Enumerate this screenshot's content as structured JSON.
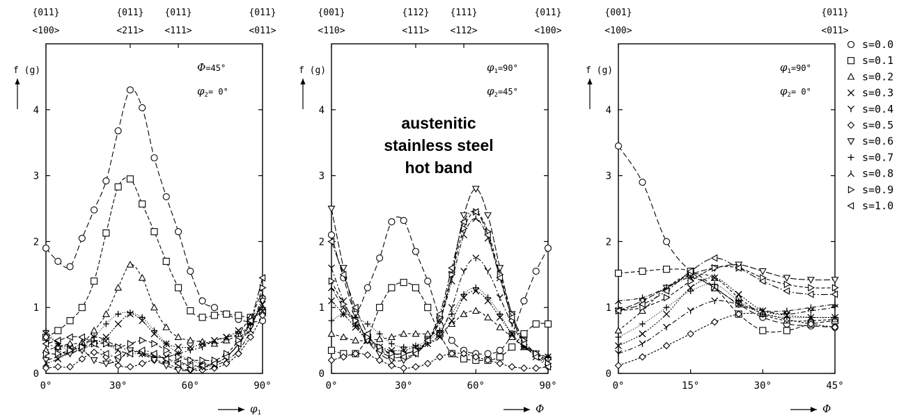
{
  "figure": {
    "annotation": [
      "austenitic",
      "stainless steel",
      "hot band"
    ],
    "legend": {
      "placement": "right",
      "entries": [
        {
          "marker": "circle",
          "label": "s=0.0"
        },
        {
          "marker": "square",
          "label": "s=0.1"
        },
        {
          "marker": "triangle-up",
          "label": "s=0.2"
        },
        {
          "marker": "x",
          "label": "s=0.3"
        },
        {
          "marker": "y-tri",
          "label": "s=0.4"
        },
        {
          "marker": "diamond",
          "label": "s=0.5"
        },
        {
          "marker": "triangle-down",
          "label": "s=0.6"
        },
        {
          "marker": "plus",
          "label": "s=0.7"
        },
        {
          "marker": "lambda-tri",
          "label": "s=0.8"
        },
        {
          "marker": "triangle-right",
          "label": "s=0.9"
        },
        {
          "marker": "triangle-left",
          "label": "s=1.0"
        }
      ]
    }
  },
  "chart_data": [
    {
      "type": "line",
      "ylabel": "f (g)",
      "xlabel_symbol": "φ1",
      "params": [
        {
          "sym": "Φ",
          "val": "=45°"
        },
        {
          "sym": "φ2",
          "val": "=  0°"
        }
      ],
      "xlim": [
        0,
        90
      ],
      "ylim": [
        0,
        5
      ],
      "xticks": [
        {
          "v": 0,
          "label": "0°"
        },
        {
          "v": 30,
          "label": "30°"
        },
        {
          "v": 60,
          "label": "60°"
        },
        {
          "v": 90,
          "label": "90°"
        }
      ],
      "yticks": [
        {
          "v": 0,
          "label": "0"
        },
        {
          "v": 1,
          "label": "1"
        },
        {
          "v": 2,
          "label": "2"
        },
        {
          "v": 3,
          "label": "3"
        },
        {
          "v": 4,
          "label": "4"
        }
      ],
      "top_labels": [
        {
          "x": 0,
          "plane": "{011}",
          "dir": "<100>"
        },
        {
          "x": 35,
          "plane": "{011}",
          "dir": "<211>"
        },
        {
          "x": 55,
          "plane": "{011}",
          "dir": "<111>"
        },
        {
          "x": 90,
          "plane": "{011}",
          "dir": "<011>"
        }
      ],
      "x": [
        0,
        5,
        10,
        15,
        20,
        25,
        30,
        35,
        40,
        45,
        50,
        55,
        60,
        65,
        70,
        75,
        80,
        85,
        90
      ],
      "series": [
        {
          "name": "s=0.0",
          "values": [
            1.9,
            1.7,
            1.62,
            2.05,
            2.48,
            2.92,
            3.68,
            4.3,
            4.03,
            3.27,
            2.68,
            2.15,
            1.55,
            1.1,
            1.0,
            0.9,
            0.82,
            0.78,
            0.8
          ]
        },
        {
          "name": "s=0.1",
          "values": [
            0.55,
            0.65,
            0.8,
            1.0,
            1.4,
            2.13,
            2.83,
            2.95,
            2.57,
            2.15,
            1.7,
            1.3,
            0.95,
            0.85,
            0.88,
            0.9,
            0.88,
            0.85,
            0.93
          ]
        },
        {
          "name": "s=0.2",
          "values": [
            0.35,
            0.4,
            0.45,
            0.47,
            0.65,
            0.9,
            1.3,
            1.65,
            1.45,
            1.0,
            0.7,
            0.55,
            0.5,
            0.48,
            0.45,
            0.5,
            0.6,
            0.85,
            1.0
          ]
        },
        {
          "name": "s=0.3",
          "values": [
            0.6,
            0.45,
            0.4,
            0.38,
            0.45,
            0.55,
            0.75,
            0.9,
            0.8,
            0.6,
            0.45,
            0.4,
            0.4,
            0.45,
            0.5,
            0.55,
            0.65,
            0.8,
            0.95
          ]
        },
        {
          "name": "s=0.4",
          "values": [
            0.5,
            0.35,
            0.3,
            0.4,
            0.55,
            0.5,
            0.4,
            0.35,
            0.3,
            0.25,
            0.25,
            0.3,
            0.35,
            0.4,
            0.5,
            0.55,
            0.6,
            0.75,
            1.05
          ]
        },
        {
          "name": "s=0.5",
          "values": [
            0.08,
            0.1,
            0.1,
            0.22,
            0.32,
            0.25,
            0.12,
            0.1,
            0.15,
            0.2,
            0.15,
            0.08,
            0.05,
            0.05,
            0.08,
            0.15,
            0.3,
            0.55,
            0.88
          ]
        },
        {
          "name": "s=0.6",
          "values": [
            0.2,
            0.25,
            0.3,
            0.35,
            0.2,
            0.15,
            0.2,
            0.35,
            0.3,
            0.2,
            0.12,
            0.05,
            0.05,
            0.1,
            0.15,
            0.25,
            0.45,
            0.7,
            1.1
          ]
        },
        {
          "name": "s=0.7",
          "values": [
            0.65,
            0.45,
            0.35,
            0.4,
            0.55,
            0.75,
            0.9,
            0.92,
            0.85,
            0.65,
            0.45,
            0.3,
            0.2,
            0.15,
            0.15,
            0.25,
            0.45,
            0.75,
            1.0
          ]
        },
        {
          "name": "s=0.8",
          "values": [
            0.15,
            0.22,
            0.35,
            0.45,
            0.5,
            0.45,
            0.35,
            0.3,
            0.3,
            0.28,
            0.22,
            0.18,
            0.12,
            0.1,
            0.12,
            0.2,
            0.35,
            0.65,
            1.2
          ]
        },
        {
          "name": "s=0.9",
          "values": [
            0.3,
            0.3,
            0.35,
            0.4,
            0.45,
            0.45,
            0.4,
            0.45,
            0.5,
            0.45,
            0.35,
            0.25,
            0.2,
            0.2,
            0.2,
            0.3,
            0.5,
            0.8,
            1.3
          ]
        },
        {
          "name": "s=1.0",
          "values": [
            0.45,
            0.5,
            0.55,
            0.55,
            0.45,
            0.3,
            0.25,
            0.3,
            0.35,
            0.3,
            0.22,
            0.15,
            0.12,
            0.12,
            0.15,
            0.25,
            0.45,
            0.8,
            1.45
          ]
        }
      ]
    },
    {
      "type": "line",
      "ylabel": "f (g)",
      "xlabel_symbol": "Φ",
      "params": [
        {
          "sym": "φ1",
          "val": "=90°"
        },
        {
          "sym": "φ2",
          "val": "=45°"
        }
      ],
      "xlim": [
        0,
        90
      ],
      "ylim": [
        0,
        5
      ],
      "xticks": [
        {
          "v": 0,
          "label": "0°"
        },
        {
          "v": 30,
          "label": "30°"
        },
        {
          "v": 60,
          "label": "60°"
        },
        {
          "v": 90,
          "label": "90°"
        }
      ],
      "yticks": [
        {
          "v": 0,
          "label": "0"
        },
        {
          "v": 1,
          "label": "1"
        },
        {
          "v": 2,
          "label": "2"
        },
        {
          "v": 3,
          "label": "3"
        },
        {
          "v": 4,
          "label": "4"
        }
      ],
      "top_labels": [
        {
          "x": 0,
          "plane": "{001}",
          "dir": "<110>"
        },
        {
          "x": 35,
          "plane": "{112}",
          "dir": "<111>"
        },
        {
          "x": 55,
          "plane": "{111}",
          "dir": "<112>"
        },
        {
          "x": 90,
          "plane": "{011}",
          "dir": "<100>"
        }
      ],
      "x": [
        0,
        5,
        10,
        15,
        20,
        25,
        30,
        35,
        40,
        45,
        50,
        55,
        60,
        65,
        70,
        75,
        80,
        85,
        90
      ],
      "series": [
        {
          "name": "s=0.0",
          "values": [
            2.1,
            1.45,
            0.95,
            1.3,
            1.75,
            2.3,
            2.32,
            1.85,
            1.4,
            0.85,
            0.5,
            0.35,
            0.3,
            0.3,
            0.35,
            0.6,
            1.1,
            1.55,
            1.9
          ]
        },
        {
          "name": "s=0.1",
          "values": [
            0.35,
            0.3,
            0.3,
            0.55,
            1.0,
            1.3,
            1.38,
            1.3,
            1.0,
            0.6,
            0.3,
            0.22,
            0.2,
            0.2,
            0.25,
            0.4,
            0.6,
            0.75,
            0.75
          ]
        },
        {
          "name": "s=0.2",
          "values": [
            0.6,
            0.55,
            0.5,
            0.5,
            0.52,
            0.55,
            0.6,
            0.6,
            0.6,
            0.62,
            0.75,
            0.9,
            0.95,
            0.85,
            0.7,
            0.55,
            0.4,
            0.3,
            0.25
          ]
        },
        {
          "name": "s=0.3",
          "values": [
            1.1,
            0.9,
            0.7,
            0.5,
            0.4,
            0.35,
            0.35,
            0.4,
            0.45,
            0.55,
            0.8,
            1.15,
            1.25,
            1.1,
            0.85,
            0.6,
            0.4,
            0.3,
            0.25
          ]
        },
        {
          "name": "s=0.4",
          "values": [
            1.6,
            1.1,
            0.75,
            0.5,
            0.35,
            0.3,
            0.3,
            0.35,
            0.45,
            0.6,
            1.0,
            1.55,
            1.75,
            1.55,
            1.15,
            0.75,
            0.45,
            0.3,
            0.2
          ]
        },
        {
          "name": "s=0.5",
          "values": [
            0.2,
            0.25,
            0.3,
            0.28,
            0.2,
            0.12,
            0.08,
            0.1,
            0.15,
            0.25,
            0.3,
            0.3,
            0.25,
            0.2,
            0.15,
            0.1,
            0.08,
            0.08,
            0.1
          ]
        },
        {
          "name": "s=0.6",
          "values": [
            2.5,
            1.6,
            0.9,
            0.5,
            0.3,
            0.2,
            0.2,
            0.3,
            0.5,
            0.8,
            1.5,
            2.4,
            2.8,
            2.4,
            1.6,
            0.9,
            0.5,
            0.3,
            0.2
          ]
        },
        {
          "name": "s=0.7",
          "values": [
            0.8,
            0.9,
            0.85,
            0.75,
            0.6,
            0.45,
            0.4,
            0.42,
            0.5,
            0.65,
            0.9,
            1.2,
            1.3,
            1.15,
            0.9,
            0.6,
            0.4,
            0.3,
            0.25
          ]
        },
        {
          "name": "s=0.8",
          "values": [
            1.3,
            1.0,
            0.75,
            0.55,
            0.4,
            0.3,
            0.3,
            0.35,
            0.5,
            0.8,
            1.4,
            2.1,
            2.35,
            2.05,
            1.45,
            0.85,
            0.45,
            0.25,
            0.15
          ]
        },
        {
          "name": "s=0.9",
          "values": [
            1.4,
            1.05,
            0.8,
            0.55,
            0.4,
            0.3,
            0.3,
            0.35,
            0.5,
            0.85,
            1.5,
            2.2,
            2.45,
            2.15,
            1.5,
            0.9,
            0.5,
            0.3,
            0.15
          ]
        },
        {
          "name": "s=1.0",
          "values": [
            2.0,
            1.5,
            1.0,
            0.6,
            0.35,
            0.25,
            0.25,
            0.3,
            0.5,
            0.9,
            1.6,
            2.3,
            2.45,
            2.1,
            1.45,
            0.85,
            0.45,
            0.25,
            0.1
          ]
        }
      ]
    },
    {
      "type": "line",
      "ylabel": "f (g)",
      "xlabel_symbol": "Φ",
      "params": [
        {
          "sym": "φ1",
          "val": "=90°"
        },
        {
          "sym": "φ2",
          "val": "=  0°"
        }
      ],
      "xlim": [
        0,
        45
      ],
      "ylim": [
        0,
        5
      ],
      "xticks": [
        {
          "v": 0,
          "label": "0°"
        },
        {
          "v": 15,
          "label": "15°"
        },
        {
          "v": 30,
          "label": "30°"
        },
        {
          "v": 45,
          "label": "45°"
        }
      ],
      "yticks": [
        {
          "v": 0,
          "label": "0"
        },
        {
          "v": 1,
          "label": "1"
        },
        {
          "v": 2,
          "label": "2"
        },
        {
          "v": 3,
          "label": "3"
        },
        {
          "v": 4,
          "label": "4"
        }
      ],
      "top_labels": [
        {
          "x": 0,
          "plane": "{001}",
          "dir": "<100>"
        },
        {
          "x": 45,
          "plane": "{011}",
          "dir": "<011>"
        }
      ],
      "x": [
        0,
        5,
        10,
        15,
        20,
        25,
        30,
        35,
        40,
        45
      ],
      "series": [
        {
          "name": "s=0.0",
          "values": [
            3.45,
            2.9,
            2.0,
            1.55,
            1.3,
            1.05,
            0.85,
            0.75,
            0.72,
            0.7
          ]
        },
        {
          "name": "s=0.1",
          "values": [
            1.52,
            1.55,
            1.58,
            1.55,
            1.3,
            0.9,
            0.65,
            0.65,
            0.75,
            0.8
          ]
        },
        {
          "name": "s=0.2",
          "values": [
            0.65,
            0.95,
            1.3,
            1.5,
            1.45,
            1.15,
            0.9,
            0.8,
            0.8,
            0.82
          ]
        },
        {
          "name": "s=0.3",
          "values": [
            0.42,
            0.6,
            0.9,
            1.3,
            1.45,
            1.2,
            0.95,
            0.88,
            0.85,
            0.85
          ]
        },
        {
          "name": "s=0.4",
          "values": [
            0.3,
            0.45,
            0.7,
            0.95,
            1.1,
            1.05,
            0.95,
            0.9,
            0.95,
            1.0
          ]
        },
        {
          "name": "s=0.5",
          "values": [
            0.12,
            0.25,
            0.42,
            0.6,
            0.78,
            0.9,
            0.9,
            0.82,
            0.75,
            0.7
          ]
        },
        {
          "name": "s=0.6",
          "values": [
            0.95,
            1.1,
            1.3,
            1.5,
            1.6,
            1.65,
            1.55,
            1.45,
            1.42,
            1.42
          ]
        },
        {
          "name": "s=0.7",
          "values": [
            0.55,
            0.75,
            1.0,
            1.25,
            1.35,
            1.1,
            0.9,
            0.85,
            0.85,
            0.85
          ]
        },
        {
          "name": "s=0.8",
          "values": [
            1.1,
            1.15,
            1.3,
            1.45,
            1.3,
            1.05,
            0.95,
            0.95,
            1.0,
            1.05
          ]
        },
        {
          "name": "s=0.9",
          "values": [
            0.95,
            1.0,
            1.15,
            1.4,
            1.6,
            1.6,
            1.45,
            1.35,
            1.3,
            1.3
          ]
        },
        {
          "name": "s=1.0",
          "values": [
            0.95,
            1.05,
            1.25,
            1.55,
            1.75,
            1.6,
            1.4,
            1.25,
            1.2,
            1.2
          ]
        }
      ]
    }
  ]
}
